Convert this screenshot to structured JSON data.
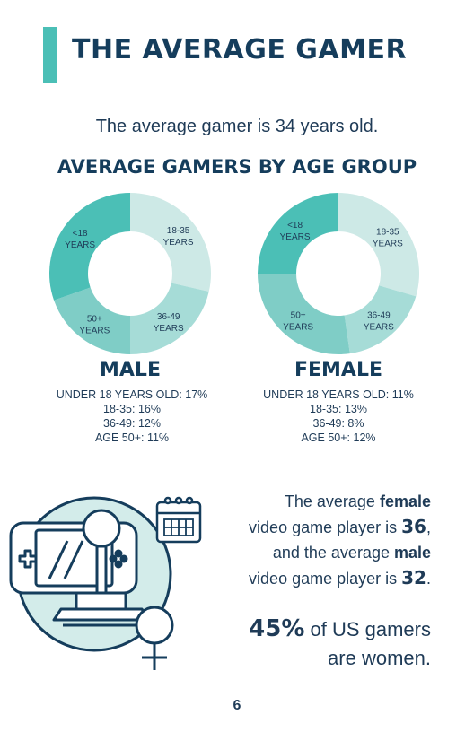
{
  "header": {
    "title": "THE AVERAGE GAMER"
  },
  "intro": {
    "text": "The average gamer is 34 years old."
  },
  "section": {
    "heading": "AVERAGE GAMERS BY AGE GROUP"
  },
  "chart_data": [
    {
      "type": "pie",
      "title": "MALE",
      "categories": [
        "18-35 YEARS",
        "36-49 YEARS",
        "50+ YEARS",
        "<18 YEARS"
      ],
      "values": [
        16,
        12,
        11,
        17
      ],
      "colors": [
        "#cde9e6",
        "#a6dcd7",
        "#7fcdc6",
        "#4bbfb6"
      ]
    },
    {
      "type": "pie",
      "title": "FEMALE",
      "categories": [
        "18-35 YEARS",
        "36-49 YEARS",
        "50+ YEARS",
        "<18 YEARS"
      ],
      "values": [
        13,
        8,
        12,
        11
      ],
      "colors": [
        "#cde9e6",
        "#a6dcd7",
        "#7fcdc6",
        "#4bbfb6"
      ]
    }
  ],
  "male": {
    "label": "MALE",
    "stats": [
      "UNDER 18 YEARS OLD: 17%",
      "18-35: 16%",
      "36-49: 12%",
      "AGE 50+: 11%"
    ]
  },
  "female": {
    "label": "FEMALE",
    "stats": [
      "UNDER 18 YEARS OLD: 11%",
      "18-35: 13%",
      "36-49: 8%",
      "AGE 50+: 12%"
    ]
  },
  "fact": {
    "p1": "The average ",
    "female_word": "female",
    "p2": "video game player is ",
    "female_age": "36",
    "p3": ",",
    "p4": "and the average ",
    "male_word": "male",
    "p5": "video game player is ",
    "male_age": "32",
    "p6": "."
  },
  "women": {
    "percent": "45%",
    "text1": "of US gamers",
    "text2": "are women."
  },
  "footer": {
    "page_number": "6"
  },
  "colors": {
    "accent": "#4bbfb6",
    "navy": "#153d5c",
    "circle_fill": "#d3ecea"
  },
  "icons": [
    "handheld-console-icon",
    "joystick-icon",
    "calendar-icon",
    "female-symbol-icon"
  ]
}
